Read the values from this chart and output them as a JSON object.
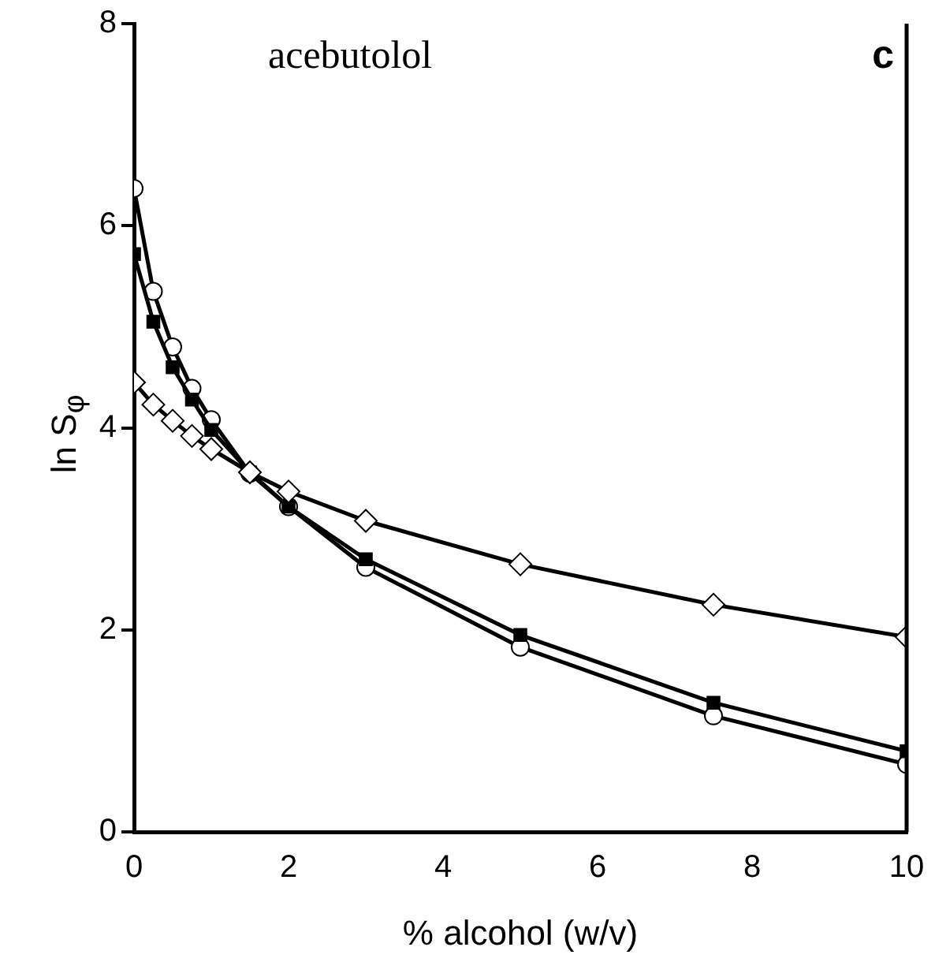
{
  "chart_data": {
    "type": "line",
    "xlabel": "% alcohol (w/v)",
    "ylabel": "ln S$_{φ}$",
    "annotations": [
      "acebutolol",
      "c"
    ],
    "x": [
      0,
      0.25,
      0.5,
      0.75,
      1,
      1.5,
      2,
      3,
      5,
      7.5,
      10
    ],
    "series": [
      {
        "color": "#000000",
        "marker": "circle",
        "values": [
          6.37,
          5.35,
          4.8,
          4.39,
          4.08,
          3.55,
          3.22,
          2.62,
          1.83,
          1.15,
          0.67
        ]
      },
      {
        "color": "#000000",
        "marker": "square",
        "values": [
          5.72,
          5.05,
          4.6,
          4.28,
          3.98,
          3.56,
          3.22,
          2.7,
          1.95,
          1.28,
          0.8
        ]
      },
      {
        "color": "#000000",
        "marker": "diamond",
        "values": [
          4.45,
          4.23,
          4.07,
          3.92,
          3.79,
          3.56,
          3.37,
          3.08,
          2.65,
          2.25,
          1.93
        ]
      }
    ],
    "xlim": [
      0,
      10
    ],
    "xticks": [
      0,
      2,
      4,
      6,
      8,
      10
    ],
    "ylim": [
      0,
      8
    ],
    "yticks": [
      0,
      2,
      4,
      6,
      8
    ],
    "grid": false,
    "legend": false
  }
}
